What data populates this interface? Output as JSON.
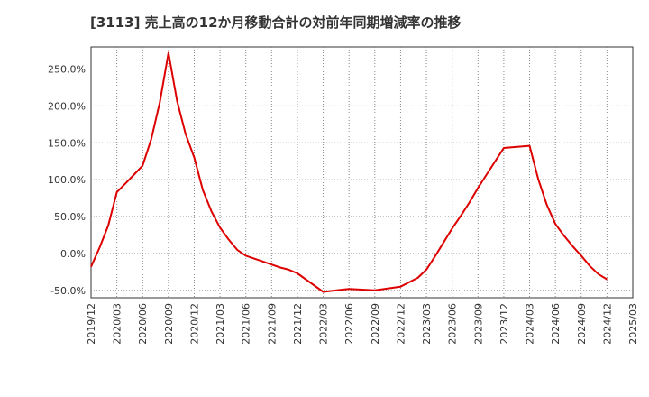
{
  "chart_data": {
    "type": "line",
    "title": "[3113]  売上高の12か月移動合計の対前年同期増減率の推移",
    "xlabel": "",
    "ylabel": "",
    "ylim": [
      -60,
      280
    ],
    "grid": true,
    "line_color": "#dd0000",
    "y_ticks": [
      {
        "value": -50,
        "label": "-50.0%"
      },
      {
        "value": 0,
        "label": "0.0%"
      },
      {
        "value": 50,
        "label": "50.0%"
      },
      {
        "value": 100,
        "label": "100.0%"
      },
      {
        "value": 150,
        "label": "150.0%"
      },
      {
        "value": 200,
        "label": "200.0%"
      },
      {
        "value": 250,
        "label": "250.0%"
      }
    ],
    "x_ticks": [
      "2019/12",
      "2020/03",
      "2020/06",
      "2020/09",
      "2020/12",
      "2021/03",
      "2021/06",
      "2021/09",
      "2021/12",
      "2022/03",
      "2022/06",
      "2022/09",
      "2022/12",
      "2023/03",
      "2023/06",
      "2023/09",
      "2023/12",
      "2024/03",
      "2024/06",
      "2024/09",
      "2024/12",
      "2025/03"
    ],
    "series": [
      {
        "name": "売上高の12か月移動合計の対前年同期増減率",
        "x": [
          0,
          1,
          2,
          3,
          4,
          5,
          6,
          7,
          8,
          9,
          10,
          11,
          12,
          13,
          14,
          15,
          16,
          17,
          18,
          19,
          20,
          21,
          22,
          23,
          24,
          27,
          30,
          33,
          36,
          38,
          39,
          40,
          41,
          42,
          43,
          44,
          45,
          46,
          47,
          48,
          51,
          52,
          53,
          54,
          55,
          56,
          57,
          58,
          59,
          60
        ],
        "values": [
          -18,
          8,
          38,
          83,
          95,
          107,
          119,
          155,
          205,
          272,
          207,
          162,
          130,
          86,
          57,
          35,
          19,
          5,
          -3,
          -7,
          -11,
          -15,
          -19,
          -22,
          -27,
          -52,
          -48,
          -50,
          -45,
          -33,
          -22,
          -4,
          15,
          34,
          51,
          69,
          89,
          107,
          125,
          143,
          146,
          101,
          66,
          40,
          24,
          10,
          -3,
          -17,
          -28,
          -35
        ]
      }
    ]
  }
}
